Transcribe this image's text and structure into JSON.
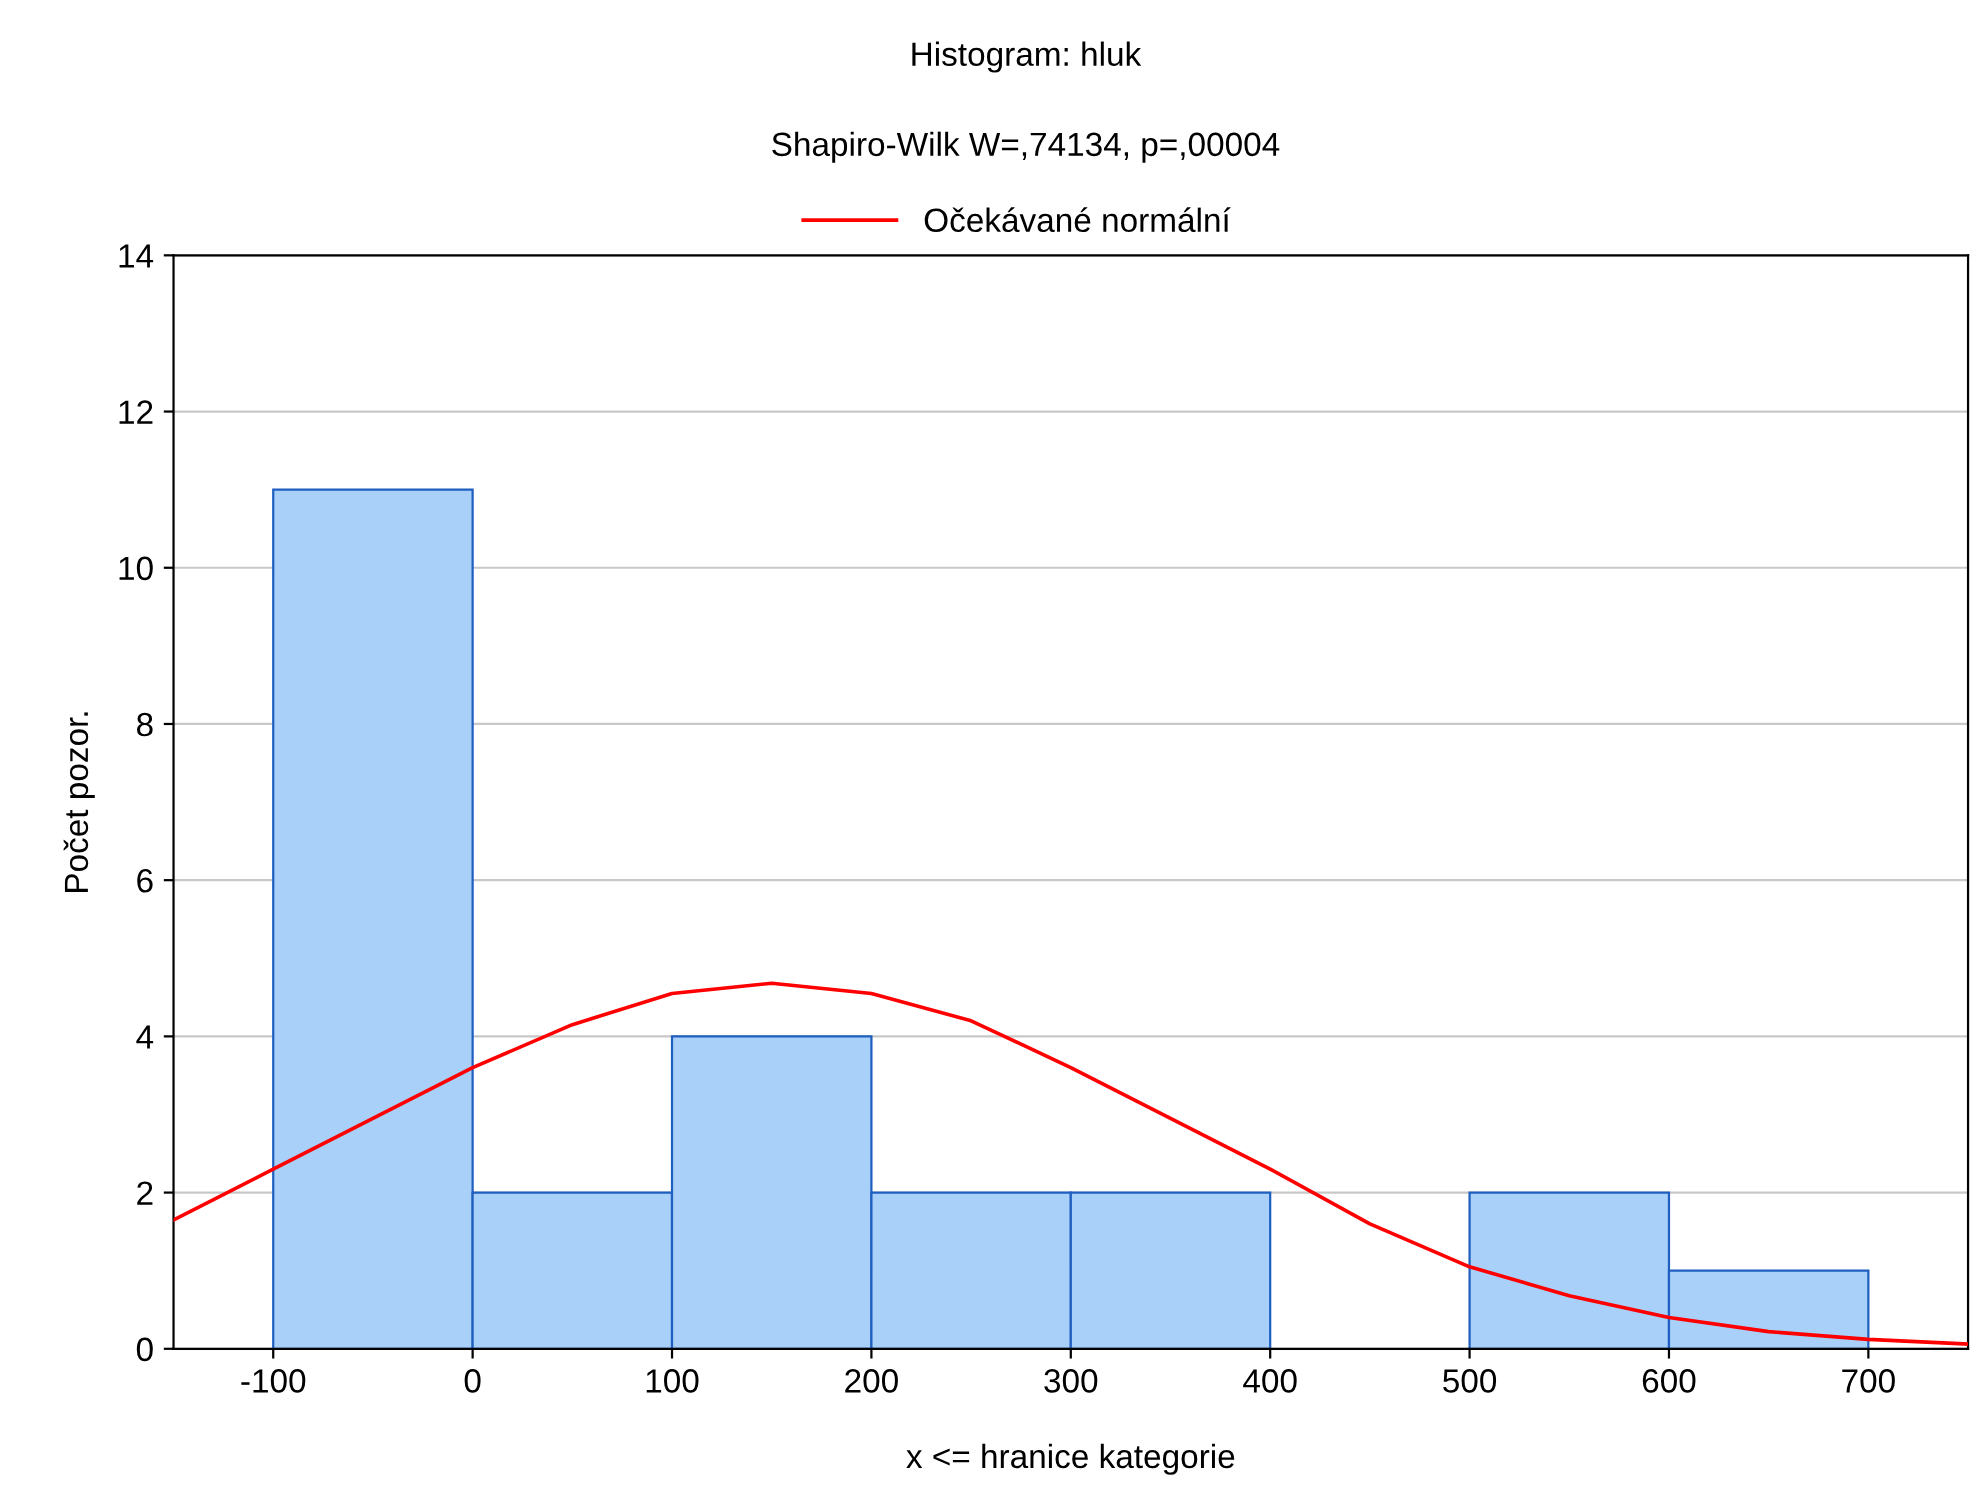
{
  "chart_data": {
    "type": "histogram",
    "title": "Histogram: hluk",
    "subtitle": "Shapiro-Wilk W=,74134, p=,00004",
    "xlabel": "x <= hranice kategorie",
    "ylabel": "Počet pozor.",
    "bins": [
      -100,
      0,
      100,
      200,
      300,
      400,
      500,
      600,
      700
    ],
    "values": [
      11,
      2,
      4,
      2,
      2,
      0,
      2,
      1
    ],
    "color": "#a8d0f8",
    "series": [
      {
        "name": "Očekávané normální",
        "type": "line",
        "color": "#ff0000",
        "x": [
          -150,
          -100,
          -50,
          0,
          50,
          100,
          150,
          200,
          250,
          300,
          350,
          400,
          450,
          500,
          550,
          600,
          650,
          700,
          750
        ],
        "values": [
          1.65,
          2.3,
          2.95,
          3.6,
          4.15,
          4.55,
          4.68,
          4.55,
          4.2,
          3.6,
          2.95,
          2.3,
          1.6,
          1.05,
          0.68,
          0.4,
          0.22,
          0.12,
          0.06
        ]
      }
    ],
    "xlim": [
      -150,
      750
    ],
    "xticks": [
      -100,
      0,
      100,
      200,
      300,
      400,
      500,
      600,
      700
    ],
    "ylim": [
      0,
      14
    ],
    "yticks": [
      0,
      2,
      4,
      6,
      8,
      10,
      12,
      14
    ],
    "grid": "y",
    "legend": "top"
  }
}
